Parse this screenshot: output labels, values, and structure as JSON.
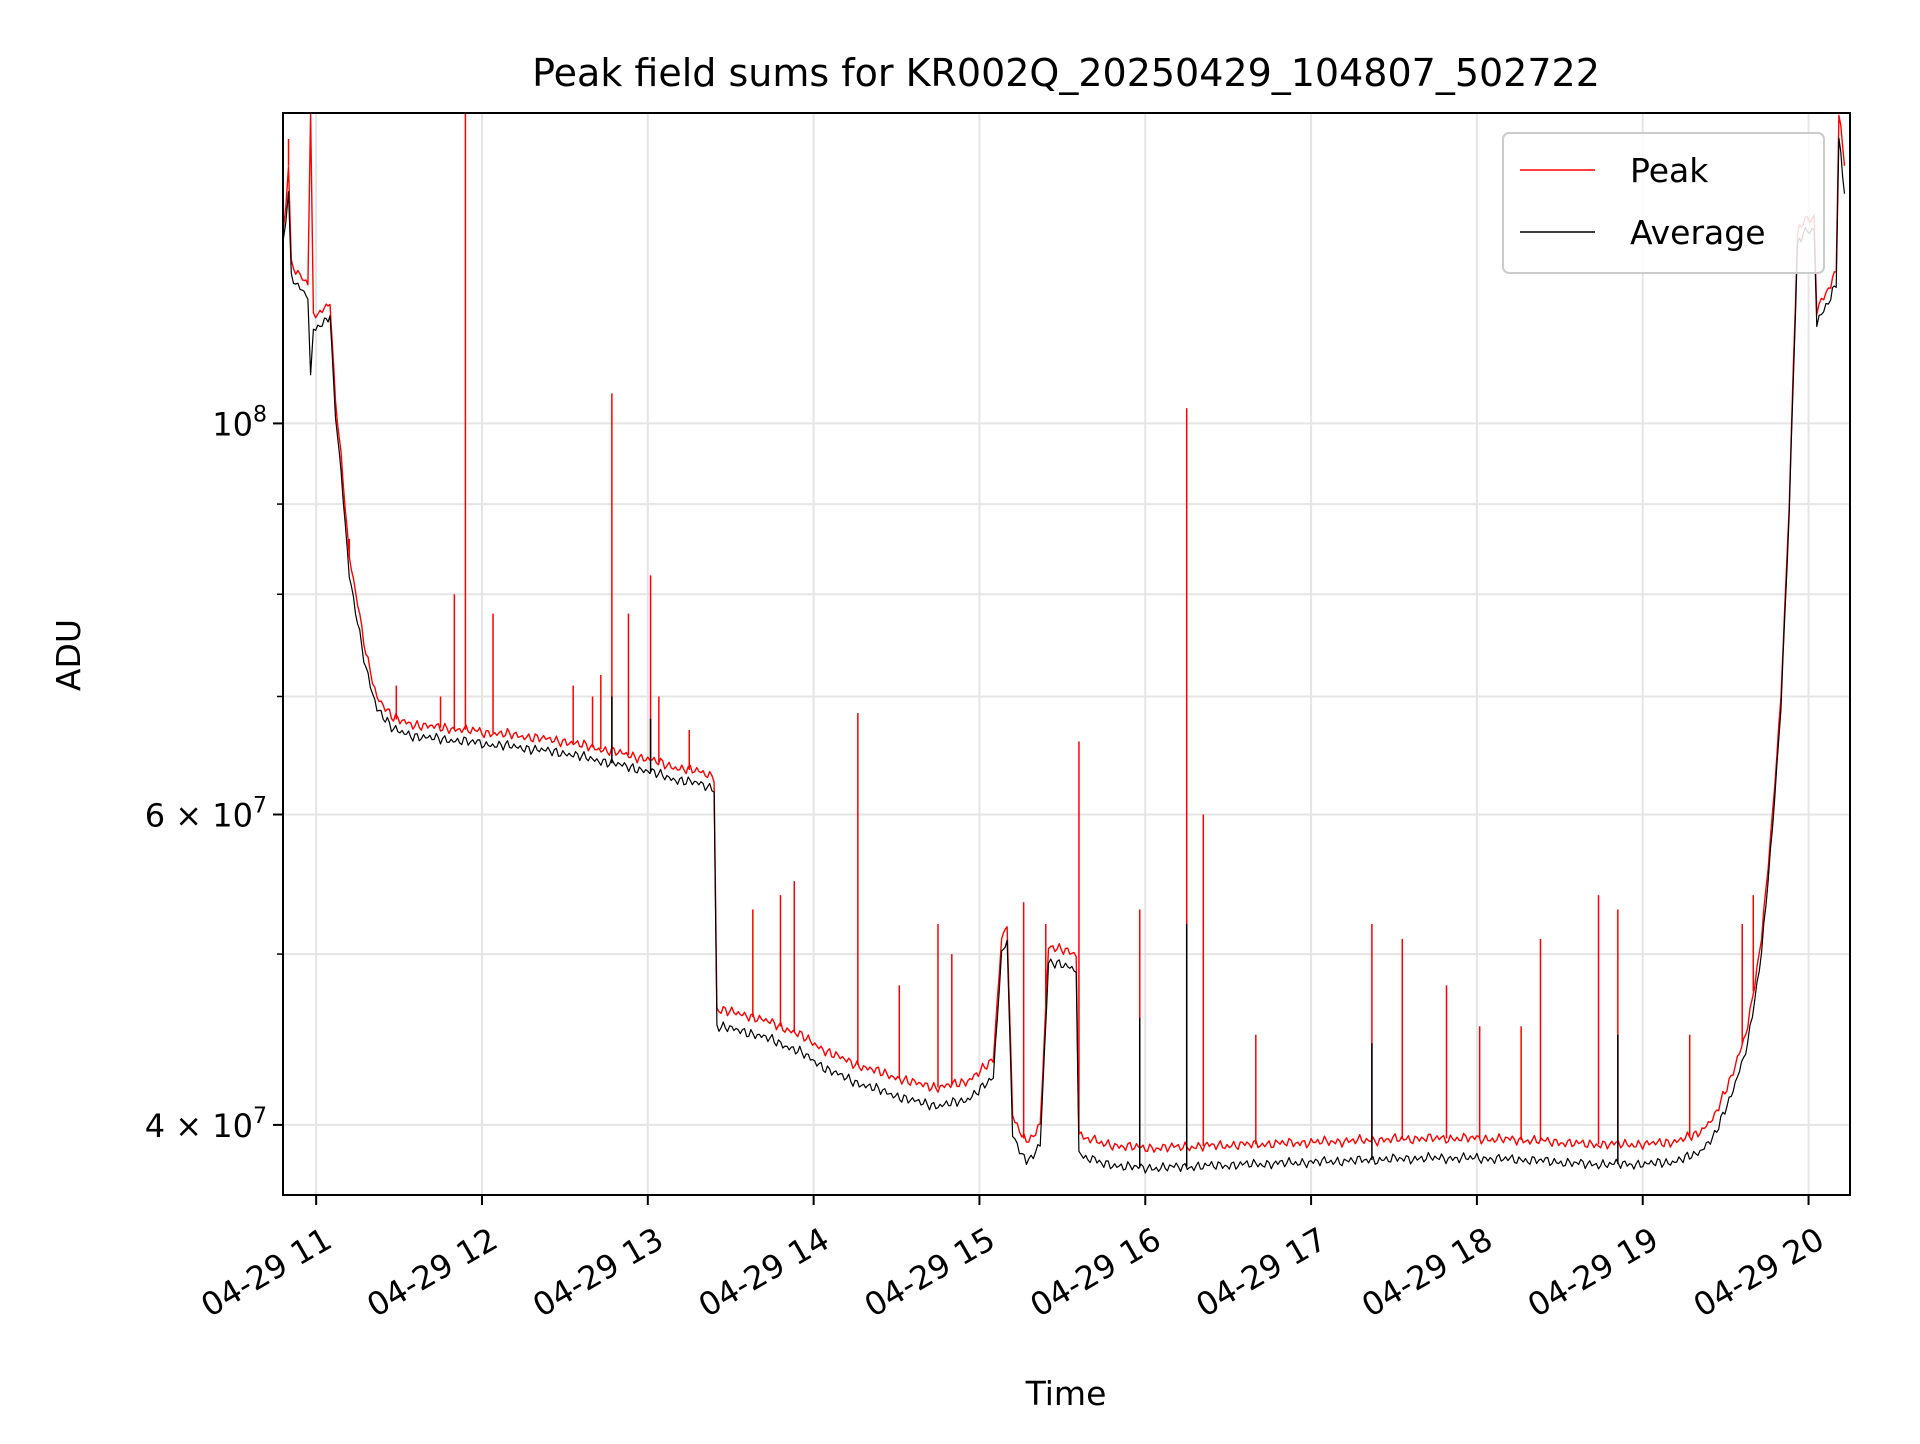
{
  "chart_data": {
    "type": "line",
    "title": "Peak field sums for KR002Q_20250429_104807_502722",
    "xlabel": "Time",
    "ylabel": "ADU",
    "x_scale": "time",
    "y_scale": "log",
    "xlim": [
      "2025-04-29 10:48",
      "2025-04-29 20:15"
    ],
    "ylim": [
      36500000,
      150000000
    ],
    "grid": true,
    "legend_position": "top-right",
    "x_ticks": [
      {
        "value": "2025-04-29 11:00",
        "label": "04-29 11"
      },
      {
        "value": "2025-04-29 12:00",
        "label": "04-29 12"
      },
      {
        "value": "2025-04-29 13:00",
        "label": "04-29 13"
      },
      {
        "value": "2025-04-29 14:00",
        "label": "04-29 14"
      },
      {
        "value": "2025-04-29 15:00",
        "label": "04-29 15"
      },
      {
        "value": "2025-04-29 16:00",
        "label": "04-29 16"
      },
      {
        "value": "2025-04-29 17:00",
        "label": "04-29 17"
      },
      {
        "value": "2025-04-29 18:00",
        "label": "04-29 18"
      },
      {
        "value": "2025-04-29 19:00",
        "label": "04-29 19"
      },
      {
        "value": "2025-04-29 20:00",
        "label": "04-29 20"
      }
    ],
    "y_major_ticks": [
      {
        "value": 100000000,
        "label_base": "10",
        "label_exp": "8"
      },
      {
        "value": 60000000,
        "label_base": "6 × 10",
        "label_exp": "7"
      },
      {
        "value": 40000000,
        "label_base": "4 × 10",
        "label_exp": "7"
      }
    ],
    "y_minor_ticks": [
      50000000,
      70000000,
      80000000,
      90000000
    ],
    "series": [
      {
        "name": "Peak",
        "color": "#ff0000",
        "points": [
          [
            "2025-04-29 10:48",
            128000000
          ],
          [
            "2025-04-29 10:49",
            132000000
          ],
          [
            "2025-04-29 10:50",
            140000000
          ],
          [
            "2025-04-29 10:51",
            123000000
          ],
          [
            "2025-04-29 10:55",
            121000000
          ],
          [
            "2025-04-29 10:57",
            120000000
          ],
          [
            "2025-04-29 10:58",
            155000000
          ],
          [
            "2025-04-29 10:59",
            115000000
          ],
          [
            "2025-04-29 11:03",
            116000000
          ],
          [
            "2025-04-29 11:05",
            117000000
          ],
          [
            "2025-04-29 11:07",
            103000000
          ],
          [
            "2025-04-29 11:09",
            96000000
          ],
          [
            "2025-04-29 11:12",
            84000000
          ],
          [
            "2025-04-29 11:15",
            79000000
          ],
          [
            "2025-04-29 11:18",
            74000000
          ],
          [
            "2025-04-29 11:22",
            70000000
          ],
          [
            "2025-04-29 11:28",
            68000000
          ],
          [
            "2025-04-29 11:35",
            67500000
          ],
          [
            "2025-04-29 11:45",
            67200000
          ],
          [
            "2025-04-29 11:55",
            67000000
          ],
          [
            "2025-04-29 12:00",
            66800000
          ],
          [
            "2025-04-29 12:10",
            66600000
          ],
          [
            "2025-04-29 12:20",
            66300000
          ],
          [
            "2025-04-29 12:30",
            66000000
          ],
          [
            "2025-04-29 12:40",
            65500000
          ],
          [
            "2025-04-29 12:50",
            65000000
          ],
          [
            "2025-04-29 13:00",
            64500000
          ],
          [
            "2025-04-29 13:10",
            63800000
          ],
          [
            "2025-04-29 13:20",
            63400000
          ],
          [
            "2025-04-29 13:24",
            63000000
          ],
          [
            "2025-04-29 13:25",
            46500000
          ],
          [
            "2025-04-29 13:35",
            46200000
          ],
          [
            "2025-04-29 13:45",
            45700000
          ],
          [
            "2025-04-29 13:55",
            45000000
          ],
          [
            "2025-04-29 14:05",
            44000000
          ],
          [
            "2025-04-29 14:15",
            43300000
          ],
          [
            "2025-04-29 14:25",
            42800000
          ],
          [
            "2025-04-29 14:35",
            42300000
          ],
          [
            "2025-04-29 14:45",
            42000000
          ],
          [
            "2025-04-29 14:55",
            42300000
          ],
          [
            "2025-04-29 15:05",
            43500000
          ],
          [
            "2025-04-29 15:08",
            51000000
          ],
          [
            "2025-04-29 15:10",
            52000000
          ],
          [
            "2025-04-29 15:12",
            40500000
          ],
          [
            "2025-04-29 15:17",
            39000000
          ],
          [
            "2025-04-29 15:22",
            40000000
          ],
          [
            "2025-04-29 15:25",
            50500000
          ],
          [
            "2025-04-29 15:35",
            50000000
          ],
          [
            "2025-04-29 15:36",
            39500000
          ],
          [
            "2025-04-29 15:45",
            39000000
          ],
          [
            "2025-04-29 16:00",
            38800000
          ],
          [
            "2025-04-29 16:20",
            38900000
          ],
          [
            "2025-04-29 16:40",
            39000000
          ],
          [
            "2025-04-29 17:00",
            39100000
          ],
          [
            "2025-04-29 17:20",
            39200000
          ],
          [
            "2025-04-29 17:40",
            39300000
          ],
          [
            "2025-04-29 18:00",
            39300000
          ],
          [
            "2025-04-29 18:20",
            39200000
          ],
          [
            "2025-04-29 18:40",
            39000000
          ],
          [
            "2025-04-29 19:00",
            39000000
          ],
          [
            "2025-04-29 19:10",
            39100000
          ],
          [
            "2025-04-29 19:20",
            39500000
          ],
          [
            "2025-04-29 19:26",
            40500000
          ],
          [
            "2025-04-29 19:32",
            42500000
          ],
          [
            "2025-04-29 19:38",
            45500000
          ],
          [
            "2025-04-29 19:43",
            51000000
          ],
          [
            "2025-04-29 19:47",
            60000000
          ],
          [
            "2025-04-29 19:50",
            70000000
          ],
          [
            "2025-04-29 19:53",
            90000000
          ],
          [
            "2025-04-29 19:56",
            128000000
          ],
          [
            "2025-04-29 19:58",
            130000000
          ],
          [
            "2025-04-29 20:02",
            131000000
          ],
          [
            "2025-04-29 20:03",
            116000000
          ],
          [
            "2025-04-29 20:08",
            120000000
          ],
          [
            "2025-04-29 20:10",
            122000000
          ],
          [
            "2025-04-29 20:11",
            150000000
          ],
          [
            "2025-04-29 20:13",
            140000000
          ]
        ],
        "spikes": [
          [
            "2025-04-29 10:50",
            145000000
          ],
          [
            "2025-04-29 10:58",
            165000000
          ],
          [
            "2025-04-29 11:12",
            86000000
          ],
          [
            "2025-04-29 11:29",
            71000000
          ],
          [
            "2025-04-29 11:45",
            70000000
          ],
          [
            "2025-04-29 11:50",
            80000000
          ],
          [
            "2025-04-29 11:54",
            150000000
          ],
          [
            "2025-04-29 12:04",
            78000000
          ],
          [
            "2025-04-29 12:33",
            71000000
          ],
          [
            "2025-04-29 12:40",
            70000000
          ],
          [
            "2025-04-29 12:43",
            72000000
          ],
          [
            "2025-04-29 12:47",
            104000000
          ],
          [
            "2025-04-29 12:53",
            78000000
          ],
          [
            "2025-04-29 13:01",
            82000000
          ],
          [
            "2025-04-29 13:04",
            70000000
          ],
          [
            "2025-04-29 13:15",
            67000000
          ],
          [
            "2025-04-29 13:38",
            53000000
          ],
          [
            "2025-04-29 13:48",
            54000000
          ],
          [
            "2025-04-29 13:53",
            55000000
          ],
          [
            "2025-04-29 14:16",
            68500000
          ],
          [
            "2025-04-29 14:31",
            48000000
          ],
          [
            "2025-04-29 14:45",
            52000000
          ],
          [
            "2025-04-29 14:50",
            50000000
          ],
          [
            "2025-04-29 15:16",
            53500000
          ],
          [
            "2025-04-29 15:24",
            52000000
          ],
          [
            "2025-04-29 15:36",
            66000000
          ],
          [
            "2025-04-29 15:58",
            53000000
          ],
          [
            "2025-04-29 16:15",
            102000000
          ],
          [
            "2025-04-29 16:21",
            60000000
          ],
          [
            "2025-04-29 16:40",
            45000000
          ],
          [
            "2025-04-29 17:22",
            52000000
          ],
          [
            "2025-04-29 17:33",
            51000000
          ],
          [
            "2025-04-29 17:49",
            48000000
          ],
          [
            "2025-04-29 18:01",
            45500000
          ],
          [
            "2025-04-29 18:16",
            45500000
          ],
          [
            "2025-04-29 18:23",
            51000000
          ],
          [
            "2025-04-29 18:44",
            54000000
          ],
          [
            "2025-04-29 18:51",
            53000000
          ],
          [
            "2025-04-29 19:17",
            45000000
          ],
          [
            "2025-04-29 19:36",
            52000000
          ],
          [
            "2025-04-29 19:40",
            54000000
          ]
        ]
      },
      {
        "name": "Average",
        "color": "#000000",
        "points": [
          [
            "2025-04-29 10:48",
            126000000
          ],
          [
            "2025-04-29 10:49",
            130000000
          ],
          [
            "2025-04-29 10:50",
            135000000
          ],
          [
            "2025-04-29 10:51",
            121000000
          ],
          [
            "2025-04-29 10:55",
            119000000
          ],
          [
            "2025-04-29 10:57",
            118000000
          ],
          [
            "2025-04-29 10:58",
            106000000
          ],
          [
            "2025-04-29 10:59",
            113000000
          ],
          [
            "2025-04-29 11:03",
            114000000
          ],
          [
            "2025-04-29 11:05",
            115000000
          ],
          [
            "2025-04-29 11:07",
            101000000
          ],
          [
            "2025-04-29 11:09",
            94000000
          ],
          [
            "2025-04-29 11:12",
            82000000
          ],
          [
            "2025-04-29 11:15",
            77000000
          ],
          [
            "2025-04-29 11:18",
            72500000
          ],
          [
            "2025-04-29 11:22",
            69000000
          ],
          [
            "2025-04-29 11:28",
            67000000
          ],
          [
            "2025-04-29 11:35",
            66500000
          ],
          [
            "2025-04-29 11:45",
            66200000
          ],
          [
            "2025-04-29 11:55",
            66000000
          ],
          [
            "2025-04-29 12:00",
            65800000
          ],
          [
            "2025-04-29 12:10",
            65600000
          ],
          [
            "2025-04-29 12:20",
            65300000
          ],
          [
            "2025-04-29 12:30",
            65000000
          ],
          [
            "2025-04-29 12:40",
            64500000
          ],
          [
            "2025-04-29 12:50",
            64000000
          ],
          [
            "2025-04-29 13:00",
            63500000
          ],
          [
            "2025-04-29 13:10",
            62800000
          ],
          [
            "2025-04-29 13:20",
            62400000
          ],
          [
            "2025-04-29 13:24",
            62000000
          ],
          [
            "2025-04-29 13:25",
            45500000
          ],
          [
            "2025-04-29 13:35",
            45200000
          ],
          [
            "2025-04-29 13:45",
            44700000
          ],
          [
            "2025-04-29 13:55",
            44000000
          ],
          [
            "2025-04-29 14:05",
            43000000
          ],
          [
            "2025-04-29 14:15",
            42300000
          ],
          [
            "2025-04-29 14:25",
            41800000
          ],
          [
            "2025-04-29 14:35",
            41300000
          ],
          [
            "2025-04-29 14:45",
            41000000
          ],
          [
            "2025-04-29 14:55",
            41300000
          ],
          [
            "2025-04-29 15:05",
            42500000
          ],
          [
            "2025-04-29 15:08",
            50000000
          ],
          [
            "2025-04-29 15:10",
            51000000
          ],
          [
            "2025-04-29 15:12",
            39500000
          ],
          [
            "2025-04-29 15:17",
            38000000
          ],
          [
            "2025-04-29 15:22",
            39000000
          ],
          [
            "2025-04-29 15:25",
            49500000
          ],
          [
            "2025-04-29 15:35",
            49000000
          ],
          [
            "2025-04-29 15:36",
            38500000
          ],
          [
            "2025-04-29 15:45",
            38000000
          ],
          [
            "2025-04-29 16:00",
            37800000
          ],
          [
            "2025-04-29 16:20",
            37900000
          ],
          [
            "2025-04-29 16:40",
            38000000
          ],
          [
            "2025-04-29 17:00",
            38100000
          ],
          [
            "2025-04-29 17:20",
            38200000
          ],
          [
            "2025-04-29 17:40",
            38300000
          ],
          [
            "2025-04-29 18:00",
            38300000
          ],
          [
            "2025-04-29 18:20",
            38200000
          ],
          [
            "2025-04-29 18:40",
            38000000
          ],
          [
            "2025-04-29 19:00",
            38000000
          ],
          [
            "2025-04-29 19:10",
            38100000
          ],
          [
            "2025-04-29 19:20",
            38500000
          ],
          [
            "2025-04-29 19:26",
            39500000
          ],
          [
            "2025-04-29 19:32",
            41500000
          ],
          [
            "2025-04-29 19:38",
            44500000
          ],
          [
            "2025-04-29 19:43",
            50000000
          ],
          [
            "2025-04-29 19:47",
            59000000
          ],
          [
            "2025-04-29 19:50",
            69000000
          ],
          [
            "2025-04-29 19:53",
            89000000
          ],
          [
            "2025-04-29 19:56",
            126000000
          ],
          [
            "2025-04-29 19:58",
            128000000
          ],
          [
            "2025-04-29 20:02",
            129000000
          ],
          [
            "2025-04-29 20:03",
            114000000
          ],
          [
            "2025-04-29 20:08",
            118000000
          ],
          [
            "2025-04-29 20:10",
            120000000
          ],
          [
            "2025-04-29 20:11",
            145000000
          ],
          [
            "2025-04-29 20:13",
            135000000
          ]
        ],
        "spikes": [
          [
            "2025-04-29 12:47",
            70000000
          ],
          [
            "2025-04-29 13:01",
            68000000
          ],
          [
            "2025-04-29 16:15",
            52000000
          ],
          [
            "2025-04-29 15:58",
            46000000
          ],
          [
            "2025-04-29 17:22",
            44500000
          ],
          [
            "2025-04-29 18:51",
            45000000
          ]
        ]
      }
    ]
  }
}
